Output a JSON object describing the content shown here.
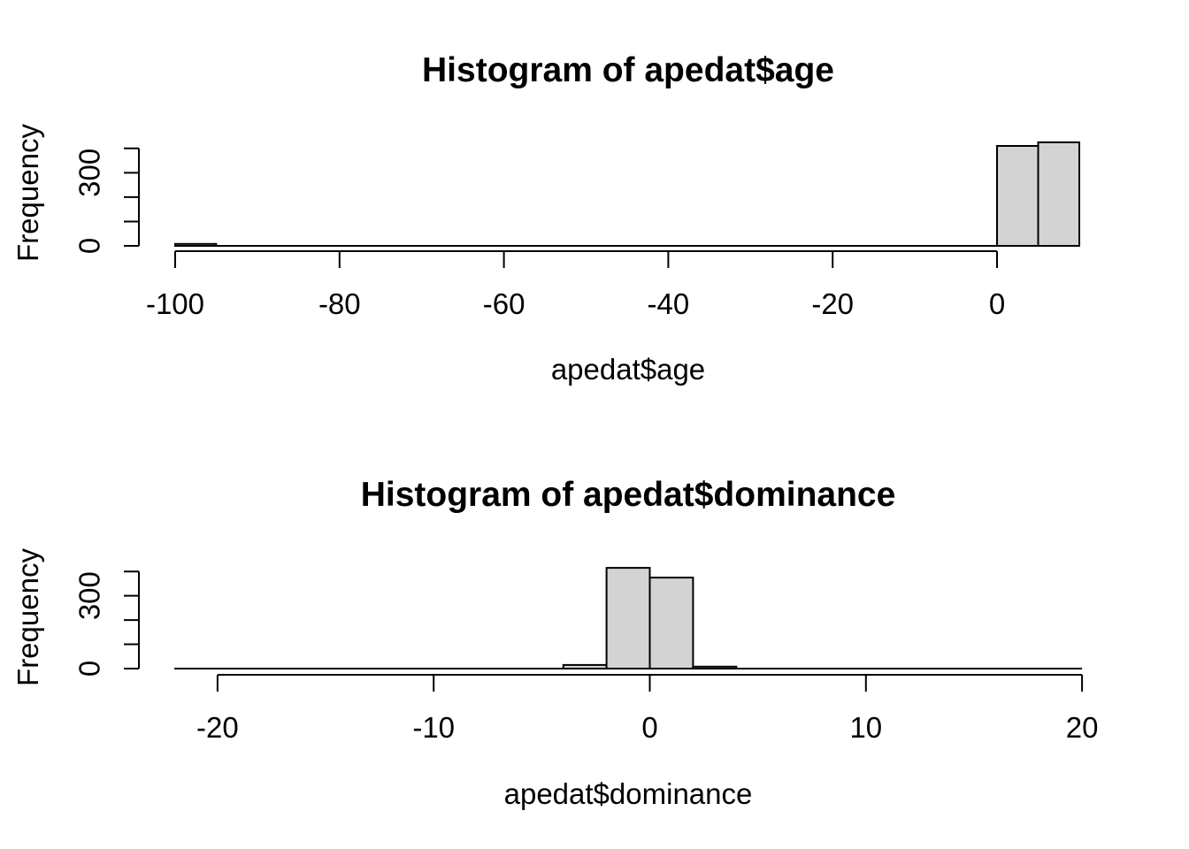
{
  "figure": {
    "background": "#ffffff",
    "bar_fill": "#d3d3d3",
    "bar_stroke": "#000000",
    "axis_color": "#000000",
    "text_color": "#000000"
  },
  "chart_data": [
    {
      "type": "bar",
      "subtype": "histogram",
      "title": "Histogram of apedat$age",
      "xlabel": "apedat$age",
      "ylabel": "Frequency",
      "x_ticks": [
        -100,
        -80,
        -60,
        -40,
        -20,
        0
      ],
      "y_ticks": [
        0,
        100,
        200,
        300,
        400
      ],
      "y_labeled_ticks": [
        0,
        300
      ],
      "xlim": [
        -104,
        14
      ],
      "ylim": [
        0,
        430
      ],
      "grid": false,
      "legend": false,
      "bin_width": 5,
      "bins": [
        {
          "from": -100,
          "to": -95,
          "count": 8
        },
        {
          "from": 0,
          "to": 5,
          "count": 410
        },
        {
          "from": 5,
          "to": 10,
          "count": 425
        }
      ],
      "zero_line_extent": [
        -100,
        10
      ]
    },
    {
      "type": "bar",
      "subtype": "histogram",
      "title": "Histogram of apedat$dominance",
      "xlabel": "apedat$dominance",
      "ylabel": "Frequency",
      "x_ticks": [
        -20,
        -10,
        0,
        10,
        20
      ],
      "y_ticks": [
        0,
        100,
        200,
        300,
        400
      ],
      "y_labeled_ticks": [
        0,
        300
      ],
      "xlim": [
        -23.7,
        21.7
      ],
      "ylim": [
        0,
        430
      ],
      "grid": false,
      "legend": false,
      "bin_width": 2,
      "bins": [
        {
          "from": -4,
          "to": -2,
          "count": 15
        },
        {
          "from": -2,
          "to": 0,
          "count": 415
        },
        {
          "from": 0,
          "to": 2,
          "count": 375
        },
        {
          "from": 2,
          "to": 4,
          "count": 8
        }
      ],
      "zero_line_extent": [
        -22,
        20
      ]
    }
  ]
}
